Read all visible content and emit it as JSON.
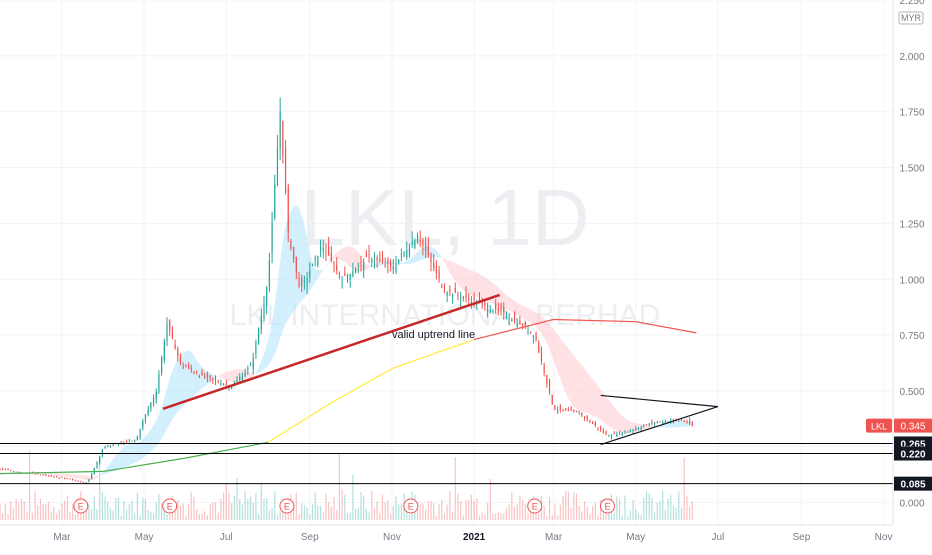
{
  "watermark": {
    "symbol": "LKL, 1D",
    "name": "LKL INTERNATIONAL BERHAD"
  },
  "currency": "MYR",
  "annotation": "valid uptrend line",
  "price_badge": {
    "label": "LKL",
    "value": "0.345"
  },
  "level_labels": [
    "0.265",
    "0.220",
    "0.085"
  ],
  "earnings_marker": "E",
  "colors": {
    "up": "#26a69a",
    "down": "#ef5350",
    "ma_short": "#ef5350",
    "ma_long_green": "#4caf50",
    "ma_long_yellow": "#ffeb3b",
    "cloud_up": "#b3e5fc",
    "cloud_down": "#ffcdd2",
    "trendline": "#c62828",
    "level_line": "#000000"
  },
  "chart_data": {
    "type": "candlestick",
    "title": "LKL, 1D",
    "subtitle": "LKL INTERNATIONAL BERHAD",
    "ylabel": "MYR",
    "ylim": [
      -0.1,
      2.25
    ],
    "y_ticks": [
      "0.000",
      "0.250",
      "0.500",
      "0.750",
      "1.000",
      "1.250",
      "1.500",
      "1.750",
      "2.000",
      "2.250"
    ],
    "x_ticks": [
      "Mar",
      "May",
      "Jul",
      "Sep",
      "Nov",
      "2021",
      "Mar",
      "May",
      "Jul",
      "Sep",
      "Nov"
    ],
    "x_tick_dates": [
      "2020-03-01",
      "2020-05-01",
      "2020-07-01",
      "2020-09-01",
      "2020-11-01",
      "2021-01-01",
      "2021-03-01",
      "2021-05-01",
      "2021-07-01",
      "2021-09-01",
      "2021-11-01"
    ],
    "x_range": [
      "2020-01-15",
      "2021-11-08"
    ],
    "price_path": [
      {
        "date": "2020-01-15",
        "close": 0.15
      },
      {
        "date": "2020-02-20",
        "close": 0.12
      },
      {
        "date": "2020-03-20",
        "close": 0.09
      },
      {
        "date": "2020-04-01",
        "close": 0.25
      },
      {
        "date": "2020-04-25",
        "close": 0.28
      },
      {
        "date": "2020-05-01",
        "close": 0.38
      },
      {
        "date": "2020-05-10",
        "close": 0.5
      },
      {
        "date": "2020-05-18",
        "close": 0.8
      },
      {
        "date": "2020-05-28",
        "close": 0.62
      },
      {
        "date": "2020-06-15",
        "close": 0.56
      },
      {
        "date": "2020-07-05",
        "close": 0.52
      },
      {
        "date": "2020-07-20",
        "close": 0.62
      },
      {
        "date": "2020-08-01",
        "close": 1.0
      },
      {
        "date": "2020-08-10",
        "close": 1.75
      },
      {
        "date": "2020-08-16",
        "close": 1.2
      },
      {
        "date": "2020-08-25",
        "close": 0.95
      },
      {
        "date": "2020-09-10",
        "close": 1.15
      },
      {
        "date": "2020-09-25",
        "close": 1.0
      },
      {
        "date": "2020-10-15",
        "close": 1.1
      },
      {
        "date": "2020-11-01",
        "close": 1.05
      },
      {
        "date": "2020-11-20",
        "close": 1.2
      },
      {
        "date": "2020-12-10",
        "close": 0.95
      },
      {
        "date": "2021-01-01",
        "close": 0.9
      },
      {
        "date": "2021-01-25",
        "close": 0.84
      },
      {
        "date": "2021-02-15",
        "close": 0.75
      },
      {
        "date": "2021-03-01",
        "close": 0.42
      },
      {
        "date": "2021-03-20",
        "close": 0.4
      },
      {
        "date": "2021-04-10",
        "close": 0.3
      },
      {
        "date": "2021-04-25",
        "close": 0.32
      },
      {
        "date": "2021-05-15",
        "close": 0.36
      },
      {
        "date": "2021-06-05",
        "close": 0.37
      },
      {
        "date": "2021-06-12",
        "close": 0.345
      }
    ],
    "last_price": 0.345,
    "levels": [
      0.265,
      0.22,
      0.085
    ],
    "uptrend_line": [
      {
        "date": "2020-05-15",
        "price": 0.42
      },
      {
        "date": "2021-01-20",
        "price": 0.93
      }
    ],
    "triangle": {
      "upper": [
        {
          "date": "2021-04-05",
          "price": 0.48
        },
        {
          "date": "2021-07-01",
          "price": 0.43
        }
      ],
      "lower": [
        {
          "date": "2021-04-05",
          "price": 0.26
        },
        {
          "date": "2021-07-01",
          "price": 0.43
        }
      ]
    },
    "ma_200": [
      {
        "date": "2020-01-15",
        "price": 0.13
      },
      {
        "date": "2020-04-01",
        "price": 0.14
      },
      {
        "date": "2020-06-01",
        "price": 0.2
      },
      {
        "date": "2020-08-01",
        "price": 0.27
      },
      {
        "date": "2020-09-15",
        "price": 0.44
      },
      {
        "date": "2020-11-01",
        "price": 0.6
      },
      {
        "date": "2021-01-01",
        "price": 0.73
      },
      {
        "date": "2021-03-01",
        "price": 0.82
      },
      {
        "date": "2021-05-01",
        "price": 0.81
      },
      {
        "date": "2021-06-15",
        "price": 0.76
      }
    ],
    "earnings_dates": [
      "2020-03-15",
      "2020-05-20",
      "2020-08-15",
      "2020-11-15",
      "2021-02-15",
      "2021-04-10"
    ]
  }
}
